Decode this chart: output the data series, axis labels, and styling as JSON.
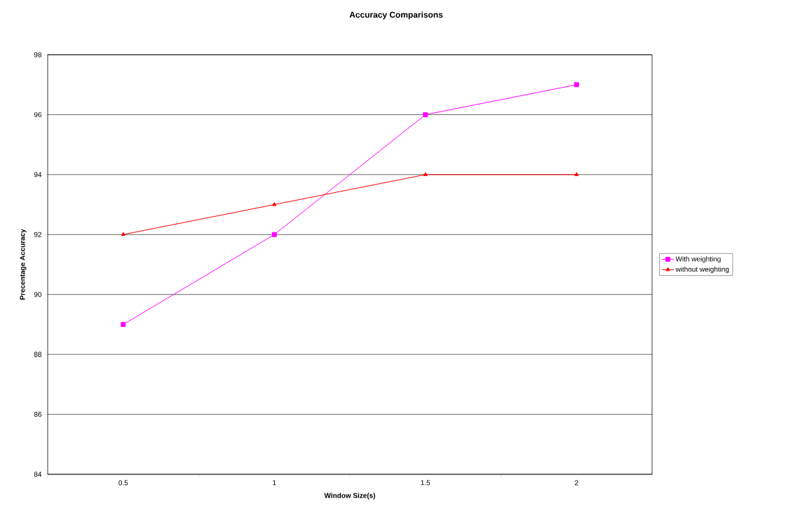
{
  "chart_data": {
    "type": "line",
    "title": "Accuracy Comparisons",
    "xlabel": "Window Size(s)",
    "ylabel": "Precentage Accuracy",
    "categories": [
      "0.5",
      "1",
      "1.5",
      "2"
    ],
    "series": [
      {
        "name": "With weighting",
        "color": "#ff00ff",
        "marker": "square",
        "values": [
          89,
          92,
          96,
          97
        ]
      },
      {
        "name": "without weighting",
        "color": "#ff0000",
        "marker": "triangle",
        "values": [
          92,
          93,
          94,
          94
        ]
      }
    ],
    "ylim": [
      84,
      98
    ],
    "yticks": [
      84,
      86,
      88,
      90,
      92,
      94,
      96,
      98
    ],
    "grid": "y",
    "legend": "right",
    "line_style": "solid"
  }
}
